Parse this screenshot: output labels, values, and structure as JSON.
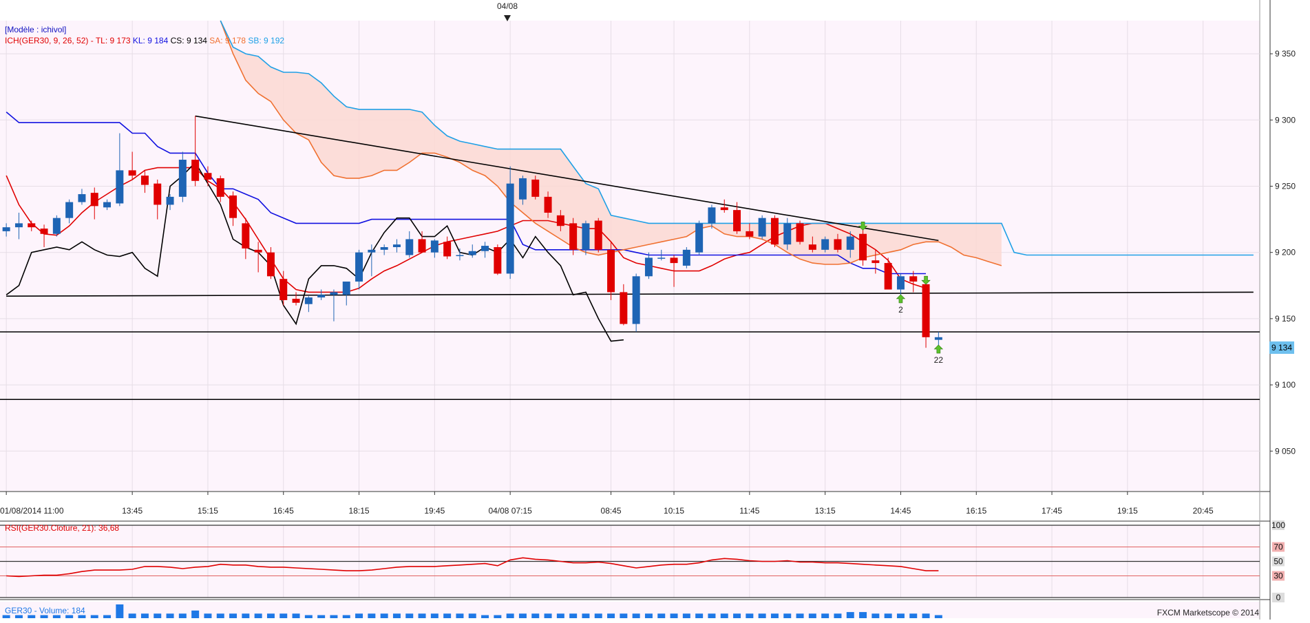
{
  "top_marker": {
    "label": "04/08"
  },
  "main_panel": {
    "model_label": "[Modèle : ichivol]",
    "indicator_legend": [
      {
        "text": "ICH(GER30, 9, 26, 52) -",
        "color": "#e00000"
      },
      {
        "text": "TL: 9 173",
        "color": "#e00000"
      },
      {
        "text": "KL: 9 184",
        "color": "#1010e0"
      },
      {
        "text": "CS: 9 134",
        "color": "#000000"
      },
      {
        "text": "SA: 9 178",
        "color": "#f07030"
      },
      {
        "text": "SB: 9 192",
        "color": "#1ea0e6"
      }
    ],
    "last_price_label": "9 134"
  },
  "chart_data": {
    "type": "candlestick",
    "instrument": "GER30",
    "y_ticks": [
      "9 050",
      "9 100",
      "9 150",
      "9 200",
      "9 250",
      "9 300",
      "9 350"
    ],
    "ylim": [
      9020,
      9375
    ],
    "x_tick_labels": [
      "01/08/2014 11:00",
      "13:45",
      "15:15",
      "16:45",
      "18:15",
      "19:45",
      "04/08 07:15",
      "08:45",
      "10:15",
      "11:45",
      "13:15",
      "14:45",
      "16:15",
      "17:45",
      "19:15",
      "20:45"
    ],
    "x_tick_slots": [
      0,
      10,
      16,
      22,
      28,
      34,
      40,
      48,
      53,
      59,
      65,
      71,
      77,
      83,
      89,
      95
    ],
    "bar_count": 100,
    "candles": [
      [
        9216,
        9222,
        9212,
        9219
      ],
      [
        9219,
        9230,
        9210,
        9222
      ],
      [
        9222,
        9224,
        9216,
        9219
      ],
      [
        9218,
        9221,
        9204,
        9214
      ],
      [
        9214,
        9228,
        9212,
        9226
      ],
      [
        9226,
        9240,
        9222,
        9238
      ],
      [
        9238,
        9248,
        9236,
        9244
      ],
      [
        9245,
        9249,
        9225,
        9235
      ],
      [
        9234,
        9240,
        9232,
        9238
      ],
      [
        9237,
        9290,
        9235,
        9262
      ],
      [
        9262,
        9276,
        9255,
        9258
      ],
      [
        9258,
        9262,
        9245,
        9251
      ],
      [
        9252,
        9255,
        9225,
        9236
      ],
      [
        9236,
        9244,
        9232,
        9242
      ],
      [
        9242,
        9276,
        9238,
        9270
      ],
      [
        9270,
        9303,
        9250,
        9254
      ],
      [
        9260,
        9265,
        9250,
        9255
      ],
      [
        9256,
        9258,
        9238,
        9242
      ],
      [
        9243,
        9246,
        9220,
        9226
      ],
      [
        9222,
        9226,
        9195,
        9203
      ],
      [
        9202,
        9208,
        9185,
        9200
      ],
      [
        9200,
        9204,
        9180,
        9182
      ],
      [
        9180,
        9186,
        9160,
        9164
      ],
      [
        9165,
        9170,
        9160,
        9162
      ],
      [
        9161,
        9167,
        9155,
        9166
      ],
      [
        9166,
        9172,
        9164,
        9168
      ],
      [
        9168,
        9172,
        9148,
        9170
      ],
      [
        9168,
        9176,
        9160,
        9178
      ],
      [
        9178,
        9202,
        9172,
        9200
      ],
      [
        9200,
        9206,
        9182,
        9202
      ],
      [
        9202,
        9206,
        9198,
        9204
      ],
      [
        9204,
        9210,
        9200,
        9206
      ],
      [
        9198,
        9216,
        9196,
        9210
      ],
      [
        9210,
        9216,
        9200,
        9200
      ],
      [
        9200,
        9210,
        9196,
        9209
      ],
      [
        9208,
        9212,
        9195,
        9197
      ],
      [
        9198,
        9203,
        9194,
        9198
      ],
      [
        9198,
        9206,
        9196,
        9201
      ],
      [
        9201,
        9208,
        9196,
        9205
      ],
      [
        9204,
        9206,
        9183,
        9184
      ],
      [
        9184,
        9265,
        9180,
        9252
      ],
      [
        9240,
        9258,
        9236,
        9256
      ],
      [
        9255,
        9258,
        9240,
        9242
      ],
      [
        9242,
        9246,
        9226,
        9230
      ],
      [
        9228,
        9232,
        9216,
        9220
      ],
      [
        9222,
        9226,
        9198,
        9202
      ],
      [
        9202,
        9224,
        9198,
        9222
      ],
      [
        9224,
        9226,
        9200,
        9202
      ],
      [
        9202,
        9208,
        9164,
        9170
      ],
      [
        9170,
        9176,
        9145,
        9146
      ],
      [
        9146,
        9184,
        9140,
        9182
      ],
      [
        9182,
        9200,
        9180,
        9196
      ],
      [
        9196,
        9202,
        9194,
        9196
      ],
      [
        9196,
        9198,
        9174,
        9192
      ],
      [
        9190,
        9204,
        9188,
        9202
      ],
      [
        9200,
        9224,
        9198,
        9222
      ],
      [
        9222,
        9236,
        9218,
        9234
      ],
      [
        9234,
        9240,
        9230,
        9232
      ],
      [
        9232,
        9238,
        9214,
        9216
      ],
      [
        9216,
        9222,
        9210,
        9212
      ],
      [
        9212,
        9228,
        9210,
        9226
      ],
      [
        9226,
        9228,
        9204,
        9206
      ],
      [
        9206,
        9226,
        9202,
        9222
      ],
      [
        9222,
        9224,
        9206,
        9208
      ],
      [
        9206,
        9212,
        9200,
        9202
      ],
      [
        9202,
        9212,
        9200,
        9210
      ],
      [
        9210,
        9214,
        9200,
        9202
      ],
      [
        9202,
        9216,
        9196,
        9212
      ],
      [
        9214,
        9220,
        9190,
        9194
      ],
      [
        9194,
        9202,
        9184,
        9192
      ],
      [
        9192,
        9196,
        9174,
        9172
      ],
      [
        9172,
        9184,
        9168,
        9182
      ],
      [
        9182,
        9186,
        9170,
        9178
      ],
      [
        9176,
        9178,
        9128,
        9136
      ],
      [
        9134,
        9140,
        9130,
        9136
      ]
    ],
    "series": [
      {
        "name": "TL",
        "color": "#e00000",
        "values": [
          9258,
          9236,
          9222,
          9214,
          9213,
          9220,
          9230,
          9238,
          9244,
          9250,
          9255,
          9262,
          9264,
          9264,
          9264,
          9264,
          9254,
          9248,
          9238,
          9225,
          9210,
          9195,
          9180,
          9172,
          9170,
          9170,
          9170,
          9170,
          9173,
          9180,
          9186,
          9190,
          9195,
          9200,
          9205,
          9208,
          9210,
          9212,
          9214,
          9216,
          9220,
          9224,
          9224,
          9224,
          9222,
          9220,
          9218,
          9218,
          9208,
          9196,
          9192,
          9190,
          9188,
          9186,
          9186,
          9186,
          9190,
          9195,
          9198,
          9200,
          9206,
          9212,
          9216,
          9220,
          9222,
          9222,
          9218,
          9214,
          9208,
          9202,
          9194,
          9180,
          9176,
          9173,
          null,
          null,
          null,
          null,
          null,
          null,
          null,
          null,
          null,
          null,
          null,
          null,
          null,
          null,
          null,
          null,
          null,
          null,
          null,
          null,
          null,
          null,
          null,
          null,
          null,
          null
        ]
      },
      {
        "name": "KL",
        "color": "#1010e0",
        "values": [
          9306,
          9298,
          9298,
          9298,
          9298,
          9298,
          9298,
          9298,
          9298,
          9298,
          9290,
          9290,
          9280,
          9275,
          9275,
          9275,
          9260,
          9248,
          9248,
          9244,
          9240,
          9230,
          9226,
          9222,
          9222,
          9222,
          9222,
          9222,
          9222,
          9225,
          9225,
          9225,
          9225,
          9225,
          9225,
          9225,
          9225,
          9225,
          9225,
          9225,
          9225,
          9206,
          9202,
          9202,
          9202,
          9202,
          9202,
          9202,
          9202,
          9202,
          9200,
          9198,
          9198,
          9198,
          9198,
          9198,
          9198,
          9198,
          9198,
          9198,
          9198,
          9198,
          9198,
          9198,
          9198,
          9198,
          9198,
          9192,
          9188,
          9188,
          9184,
          9184,
          9184,
          9184,
          null,
          null,
          null,
          null,
          null,
          null,
          null,
          null,
          null,
          null,
          null,
          null,
          null,
          null,
          null,
          null,
          null,
          null,
          null,
          null,
          null,
          null,
          null,
          null,
          null,
          null
        ]
      },
      {
        "name": "CS",
        "color": "#000000",
        "values": [
          9168,
          9175,
          9200,
          9202,
          9204,
          9202,
          9208,
          9202,
          9198,
          9197,
          9200,
          9188,
          9182,
          9250,
          9258,
          9268,
          9252,
          9236,
          9210,
          9204,
          9200,
          9190,
          9160,
          9146,
          9180,
          9190,
          9190,
          9188,
          9180,
          9200,
          9215,
          9226,
          9226,
          9212,
          9212,
          9220,
          9200,
          9198,
          9204,
          9200,
          9210,
          9196,
          9212,
          9200,
          9190,
          9168,
          9170,
          9150,
          9133,
          9134,
          null,
          null,
          null,
          null,
          null,
          null,
          null,
          null,
          null,
          null,
          null,
          null,
          null,
          null,
          null,
          null,
          null,
          null,
          null,
          null,
          null,
          null,
          null,
          null,
          null,
          null,
          null,
          null,
          null,
          null,
          null,
          null,
          null,
          null,
          null,
          null,
          null,
          null,
          null,
          null,
          null,
          null,
          null,
          null,
          null,
          null,
          null,
          null,
          null,
          null
        ]
      },
      {
        "name": "SA",
        "color": "#f07030",
        "values": [
          null,
          null,
          null,
          null,
          null,
          null,
          null,
          null,
          null,
          null,
          null,
          null,
          null,
          null,
          null,
          null,
          null,
          9375,
          9350,
          9330,
          9320,
          9314,
          9300,
          9290,
          9285,
          9268,
          9258,
          9256,
          9256,
          9258,
          9262,
          9262,
          9268,
          9275,
          9275,
          9272,
          9268,
          9262,
          9258,
          9250,
          9238,
          9230,
          9222,
          9216,
          9210,
          9204,
          9200,
          9198,
          9200,
          9202,
          9204,
          9206,
          9208,
          9210,
          9212,
          9218,
          9220,
          9214,
          9212,
          9212,
          9210,
          9206,
          9200,
          9195,
          9192,
          9191,
          9191,
          9192,
          9196,
          9198,
          9200,
          9202,
          9206,
          9208,
          9208,
          9204,
          9198,
          9196,
          9193,
          9190
        ]
      },
      {
        "name": "SB",
        "color": "#1ea0e6",
        "values": [
          null,
          null,
          null,
          null,
          null,
          null,
          null,
          null,
          null,
          null,
          null,
          null,
          null,
          null,
          null,
          null,
          null,
          9375,
          9355,
          9350,
          9348,
          9340,
          9336,
          9336,
          9335,
          9328,
          9318,
          9310,
          9308,
          9308,
          9308,
          9308,
          9308,
          9306,
          9296,
          9288,
          9284,
          9282,
          9280,
          9278,
          9278,
          9278,
          9278,
          9278,
          9278,
          9265,
          9252,
          9248,
          9228,
          9226,
          9224,
          9222,
          9222,
          9222,
          9222,
          9222,
          9222,
          9222,
          9222,
          9222,
          9222,
          9222,
          9222,
          9222,
          9222,
          9222,
          9222,
          9222,
          9222,
          9222,
          9222,
          9222,
          9222,
          9222,
          9222,
          9222,
          9222,
          9222,
          9222,
          9222,
          9200,
          9198,
          9198,
          9198,
          9198,
          9198,
          9198,
          9198,
          9198,
          9198,
          9198,
          9198,
          9198,
          9198,
          9198,
          9198,
          9198,
          9198,
          9198,
          9198
        ]
      }
    ],
    "cloud_slots": [
      17,
      99
    ],
    "trend_lines": [
      {
        "from": [
          15,
          9303
        ],
        "to": [
          74,
          9209
        ],
        "color": "#000000"
      },
      {
        "from": [
          0,
          9167
        ],
        "to": [
          99,
          9170
        ],
        "color": "#000000"
      }
    ],
    "horizontal_lines": [
      {
        "y": 9140,
        "color": "#000000"
      },
      {
        "y": 9089,
        "color": "#000000"
      }
    ],
    "signals": [
      {
        "slot": 68,
        "price": 9221,
        "direction": "down",
        "label": ""
      },
      {
        "slot": 71,
        "price": 9164,
        "direction": "up",
        "label": "2"
      },
      {
        "slot": 73,
        "price": 9180,
        "direction": "down",
        "label": ""
      },
      {
        "slot": 74,
        "price": 9126,
        "direction": "up",
        "label": "22"
      }
    ],
    "rsi": {
      "label": "RSI(GER30.Cloture, 21): 36,68",
      "color": "#e00000",
      "levels": [
        "100",
        "70",
        "50",
        "30",
        "0"
      ],
      "values": [
        30,
        29,
        30,
        31,
        31,
        33,
        36,
        38,
        38,
        38,
        39,
        43,
        43,
        42,
        40,
        42,
        43,
        46,
        45,
        45,
        43,
        42,
        42,
        41,
        40,
        39,
        38,
        37,
        37,
        38,
        40,
        42,
        43,
        43,
        43,
        44,
        45,
        46,
        47,
        44,
        52,
        55,
        53,
        52,
        50,
        48,
        48,
        49,
        47,
        44,
        41,
        43,
        45,
        46,
        46,
        48,
        52,
        54,
        53,
        51,
        50,
        50,
        51,
        49,
        49,
        48,
        48,
        47,
        46,
        45,
        44,
        43,
        40,
        37,
        37
      ]
    },
    "volume": {
      "label": "GER30 - Volume: 184",
      "color": "#1e78e6",
      "values": [
        2,
        2,
        2,
        2,
        2,
        2,
        2,
        2,
        2,
        9,
        3,
        3,
        3,
        3,
        3,
        5,
        3,
        3,
        3,
        3,
        3,
        3,
        3,
        3,
        2,
        2,
        2,
        2,
        3,
        3,
        3,
        3,
        3,
        3,
        3,
        3,
        3,
        3,
        2,
        2,
        3,
        3,
        3,
        3,
        3,
        3,
        3,
        3,
        3,
        3,
        3,
        3,
        3,
        3,
        3,
        3,
        3,
        3,
        3,
        3,
        3,
        3,
        3,
        3,
        3,
        3,
        3,
        4,
        4,
        3,
        3,
        3,
        3,
        3,
        2
      ]
    }
  },
  "footer": {
    "copyright": "FXCM Marketscope © 2014"
  }
}
